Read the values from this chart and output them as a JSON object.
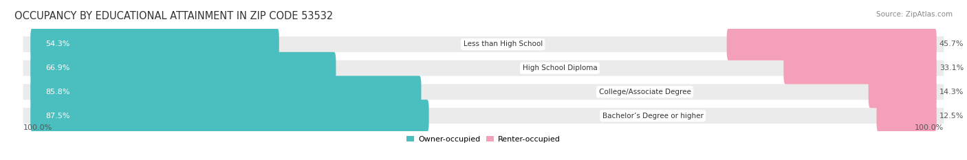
{
  "title": "OCCUPANCY BY EDUCATIONAL ATTAINMENT IN ZIP CODE 53532",
  "source": "Source: ZipAtlas.com",
  "categories": [
    "Less than High School",
    "High School Diploma",
    "College/Associate Degree",
    "Bachelor’s Degree or higher"
  ],
  "owner_values": [
    54.3,
    66.9,
    85.8,
    87.5
  ],
  "renter_values": [
    45.7,
    33.1,
    14.3,
    12.5
  ],
  "owner_color": "#4BBFBF",
  "renter_color": "#F4A0B8",
  "background_color": "#FFFFFF",
  "bar_bg_color": "#EBEBEB",
  "axis_label_left": "100.0%",
  "axis_label_right": "100.0%",
  "title_fontsize": 10.5,
  "source_fontsize": 7.5,
  "value_fontsize": 8,
  "category_fontsize": 7.5,
  "legend_fontsize": 8
}
